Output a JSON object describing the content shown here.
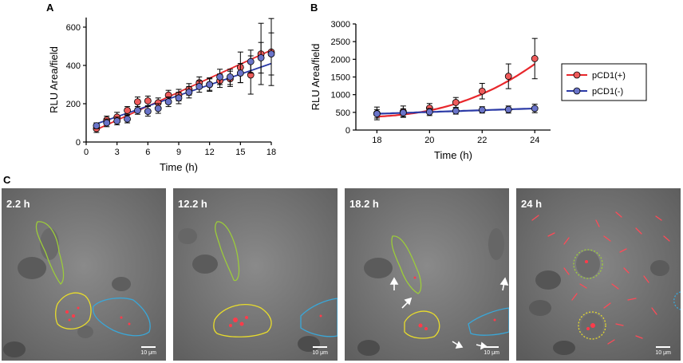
{
  "panels": {
    "a": "A",
    "b": "B",
    "c": "C"
  },
  "colors": {
    "pos": "#e8272c",
    "neg": "#2b3aa6",
    "pos_fill": "#ef5b5b",
    "neg_fill": "#6a74c9"
  },
  "chart_data": [
    {
      "type": "scatter",
      "xlabel": "Time (h)",
      "ylabel": "RLU Area/field",
      "xlim": [
        0,
        18
      ],
      "ylim": [
        0,
        650
      ],
      "xticks": [
        "0",
        "3",
        "6",
        "9",
        "12",
        "15",
        "18"
      ],
      "yticks": [
        "0",
        "200",
        "400",
        "600"
      ],
      "series": [
        {
          "name": "pCD1(+)",
          "color": "#e8272c",
          "x": [
            1,
            2,
            3,
            4,
            5,
            6,
            7,
            8,
            9,
            10,
            11,
            12,
            13,
            14,
            15,
            16,
            17,
            18
          ],
          "y": [
            70,
            115,
            130,
            165,
            210,
            215,
            205,
            245,
            245,
            275,
            310,
            300,
            320,
            330,
            390,
            350,
            460,
            470
          ],
          "err": [
            20,
            20,
            25,
            20,
            25,
            25,
            25,
            25,
            30,
            30,
            30,
            30,
            35,
            40,
            80,
            100,
            160,
            175
          ],
          "fit": [
            [
              1,
              65
            ],
            [
              18,
              480
            ]
          ]
        },
        {
          "name": "pCD1(-)",
          "color": "#2b3aa6",
          "x": [
            1,
            2,
            3,
            4,
            5,
            6,
            7,
            8,
            9,
            10,
            11,
            12,
            13,
            14,
            15,
            16,
            17,
            18
          ],
          "y": [
            85,
            100,
            110,
            120,
            165,
            160,
            175,
            210,
            230,
            260,
            290,
            300,
            340,
            340,
            360,
            420,
            440,
            460
          ],
          "err": [
            15,
            20,
            20,
            20,
            20,
            25,
            25,
            25,
            30,
            30,
            30,
            35,
            40,
            40,
            50,
            60,
            80,
            110
          ],
          "fit": [
            [
              1,
              95
            ],
            [
              18,
              410
            ]
          ]
        }
      ]
    },
    {
      "type": "scatter",
      "xlabel": "Time (h)",
      "ylabel": "RLU Area/field",
      "xlim": [
        17.2,
        24.6
      ],
      "ylim": [
        0,
        3000
      ],
      "xticks": [
        "18",
        "20",
        "22",
        "24"
      ],
      "yticks": [
        "0",
        "500",
        "1000",
        "1500",
        "2000",
        "2500",
        "3000"
      ],
      "legend_position": "right",
      "series": [
        {
          "name": "pCD1(+)",
          "color": "#e8272c",
          "x": [
            18,
            19,
            20,
            21,
            22,
            23,
            24
          ],
          "y": [
            470,
            520,
            620,
            780,
            1100,
            1520,
            2020
          ],
          "err": [
            180,
            160,
            130,
            140,
            220,
            350,
            570
          ]
        },
        {
          "name": "pCD1(-)",
          "color": "#2b3aa6",
          "x": [
            18,
            19,
            20,
            21,
            22,
            23,
            24
          ],
          "y": [
            460,
            490,
            510,
            540,
            570,
            580,
            610
          ],
          "err": [
            120,
            110,
            100,
            90,
            90,
            100,
            120
          ]
        }
      ]
    }
  ],
  "micrographs": [
    {
      "time": "2.2 h",
      "scale": "10 μm"
    },
    {
      "time": "12.2 h",
      "scale": "10 μm"
    },
    {
      "time": "18.2 h",
      "scale": "10 μm"
    },
    {
      "time": "24 h",
      "scale": "10 μm"
    }
  ]
}
